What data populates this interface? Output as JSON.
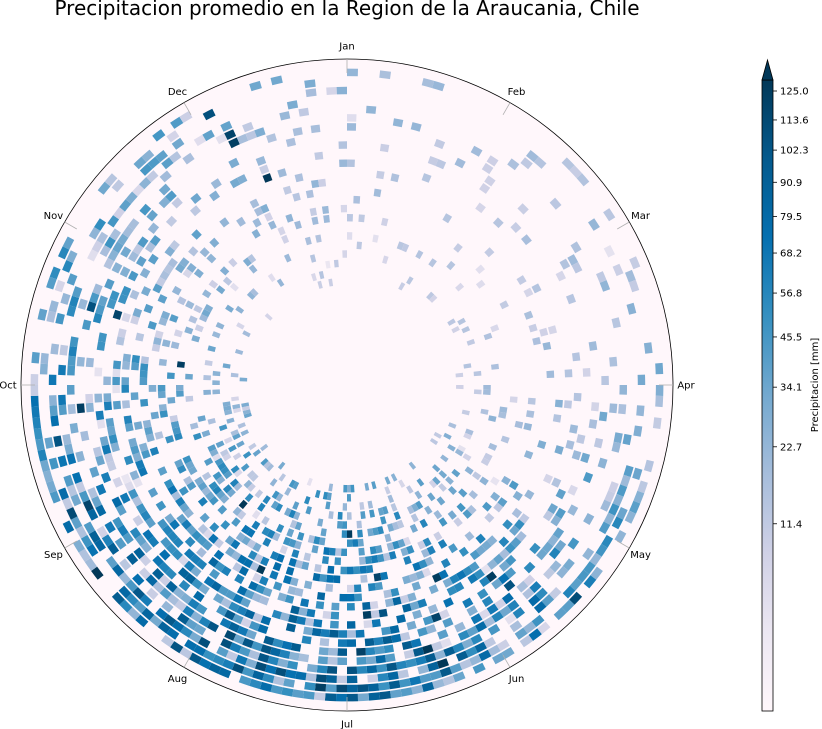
{
  "chart_data": {
    "type": "heatmap",
    "projection": "polar",
    "title": "Precipitacion promedio en la Region de la Araucania, Chile",
    "theta_labels": [
      "Jan",
      "Feb",
      "Mar",
      "Apr",
      "May",
      "Jun",
      "Jul",
      "Aug",
      "Sep",
      "Oct",
      "Nov",
      "Dec"
    ],
    "colorbar": {
      "label": "Precipitacion [mm]",
      "ticks": [
        "125.0",
        "113.6",
        "102.3",
        "90.9",
        "79.5",
        "68.2",
        "56.8",
        "45.5",
        "34.1",
        "22.7",
        "11.4"
      ],
      "tick_values": [
        125.0,
        113.6,
        102.3,
        90.9,
        79.5,
        68.2,
        56.8,
        45.5,
        34.1,
        22.7,
        11.4
      ],
      "range": [
        0,
        125.0
      ],
      "extend": "max",
      "scale": "nonlinear (square-root-like)",
      "colormap": "PuBu",
      "colors": [
        "#fff7fb",
        "#ece7f2",
        "#d0d1e6",
        "#a6bddb",
        "#74a9cf",
        "#3690c0",
        "#0570b0",
        "#045a8d",
        "#023858"
      ]
    },
    "seasonal_mean_by_month": {
      "months": [
        "Jan",
        "Feb",
        "Mar",
        "Apr",
        "May",
        "Jun",
        "Jul",
        "Aug",
        "Sep",
        "Oct",
        "Nov",
        "Dec"
      ],
      "relative_intensity": [
        0.12,
        0.1,
        0.14,
        0.24,
        0.52,
        0.78,
        0.82,
        0.76,
        0.56,
        0.42,
        0.3,
        0.18
      ]
    },
    "ring_count": 24
  }
}
